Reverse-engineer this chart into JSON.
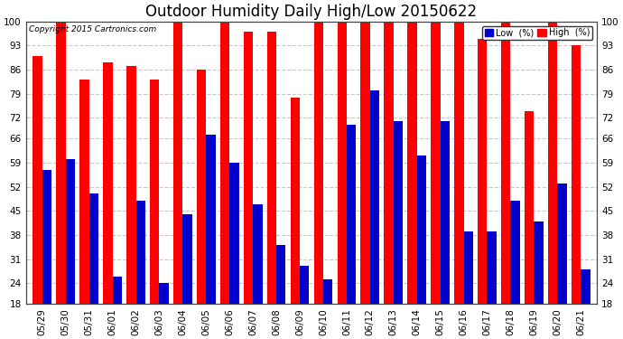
{
  "title": "Outdoor Humidity Daily High/Low 20150622",
  "copyright": "Copyright 2015 Cartronics.com",
  "categories": [
    "05/29",
    "05/30",
    "05/31",
    "06/01",
    "06/02",
    "06/03",
    "06/04",
    "06/05",
    "06/06",
    "06/07",
    "06/08",
    "06/09",
    "06/10",
    "06/11",
    "06/12",
    "06/13",
    "06/14",
    "06/15",
    "06/16",
    "06/17",
    "06/18",
    "06/19",
    "06/20",
    "06/21"
  ],
  "high_values": [
    90,
    100,
    83,
    88,
    87,
    83,
    100,
    86,
    100,
    97,
    97,
    78,
    100,
    100,
    100,
    100,
    100,
    100,
    100,
    95,
    100,
    74,
    100,
    93
  ],
  "low_values": [
    57,
    60,
    50,
    26,
    48,
    24,
    44,
    67,
    59,
    47,
    35,
    29,
    25,
    70,
    80,
    71,
    61,
    71,
    39,
    39,
    48,
    42,
    53,
    28
  ],
  "high_color": "#ff0000",
  "low_color": "#0000cc",
  "background_color": "#ffffff",
  "grid_color": "#c8c8c8",
  "ylim_min": 18,
  "ylim_max": 100,
  "yticks": [
    18,
    24,
    31,
    38,
    45,
    52,
    59,
    66,
    72,
    79,
    86,
    93,
    100
  ],
  "bar_width": 0.4,
  "title_fontsize": 12,
  "tick_fontsize": 7.5,
  "legend_labels": [
    "Low  (%)",
    "High  (%)"
  ],
  "legend_colors": [
    "#0000cc",
    "#ff0000"
  ],
  "fig_width": 6.9,
  "fig_height": 3.75,
  "dpi": 100
}
